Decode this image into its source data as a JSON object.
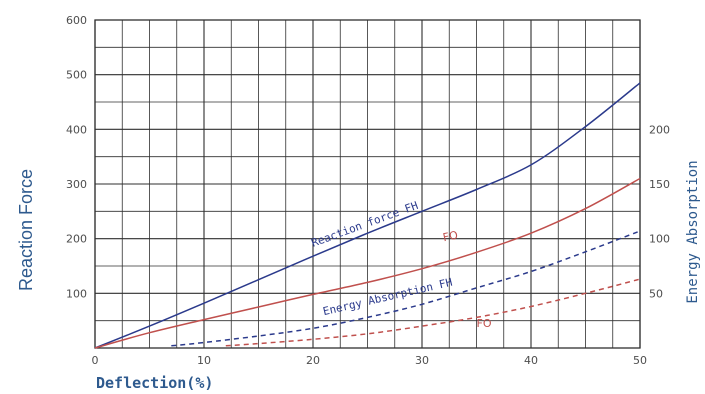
{
  "chart_data": {
    "type": "line",
    "xlabel": "Deflection(%)",
    "ylabel": "Reaction Force",
    "y2label": "Energy Absorption",
    "xlim": [
      0,
      50
    ],
    "ylim": [
      0,
      600
    ],
    "y2lim": [
      0,
      300
    ],
    "grid": true,
    "x_ticks": [
      0,
      10,
      20,
      30,
      40,
      50
    ],
    "y_ticks": [
      100,
      200,
      300,
      400,
      500,
      600
    ],
    "y2_ticks": [
      50,
      100,
      150,
      200
    ],
    "colors": {
      "grid": "#2f2f2f",
      "blue": "#2b3a8c",
      "red": "#c0504d",
      "label": "#2e5a8e"
    },
    "series": [
      {
        "name": "Reaction force FH",
        "axis": "left",
        "style": "solid",
        "color": "#2b3a8c",
        "x": [
          0,
          5,
          10,
          15,
          20,
          25,
          30,
          35,
          40,
          45,
          50
        ],
        "y": [
          0,
          40,
          82,
          125,
          168,
          210,
          250,
          290,
          335,
          405,
          485
        ]
      },
      {
        "name": "FO",
        "axis": "left",
        "style": "solid",
        "color": "#c0504d",
        "x": [
          0,
          5,
          10,
          15,
          20,
          25,
          30,
          35,
          40,
          45,
          50
        ],
        "y": [
          0,
          28,
          52,
          75,
          98,
          120,
          145,
          175,
          210,
          255,
          310
        ]
      },
      {
        "name": "Energy Absorption FH",
        "axis": "right",
        "style": "dashed",
        "color": "#2b3a8c",
        "x": [
          7,
          10,
          15,
          20,
          25,
          30,
          35,
          40,
          45,
          50
        ],
        "y": [
          2,
          5,
          11,
          18,
          28,
          40,
          55,
          70,
          88,
          107
        ]
      },
      {
        "name": "FO",
        "axis": "right",
        "style": "dashed",
        "color": "#c0504d",
        "x": [
          12,
          15,
          20,
          25,
          30,
          35,
          40,
          45,
          50
        ],
        "y": [
          2,
          4,
          8,
          13,
          20,
          28,
          38,
          50,
          63
        ]
      }
    ],
    "annotations": [
      {
        "text": "Reaction force FH",
        "x": 20,
        "y": 185,
        "axis": "left",
        "rotate": -20,
        "class": "anno-blue"
      },
      {
        "text": "FO",
        "x": 32,
        "y": 195,
        "axis": "left",
        "rotate": -12,
        "class": "anno-red"
      },
      {
        "text": "Energy Absorption FH",
        "x": 21,
        "y": 30,
        "axis": "right",
        "rotate": -13,
        "class": "anno-blue"
      },
      {
        "text": "FO",
        "x": 35,
        "y": 38,
        "axis": "left",
        "rotate": 0,
        "class": "anno-red"
      }
    ]
  }
}
